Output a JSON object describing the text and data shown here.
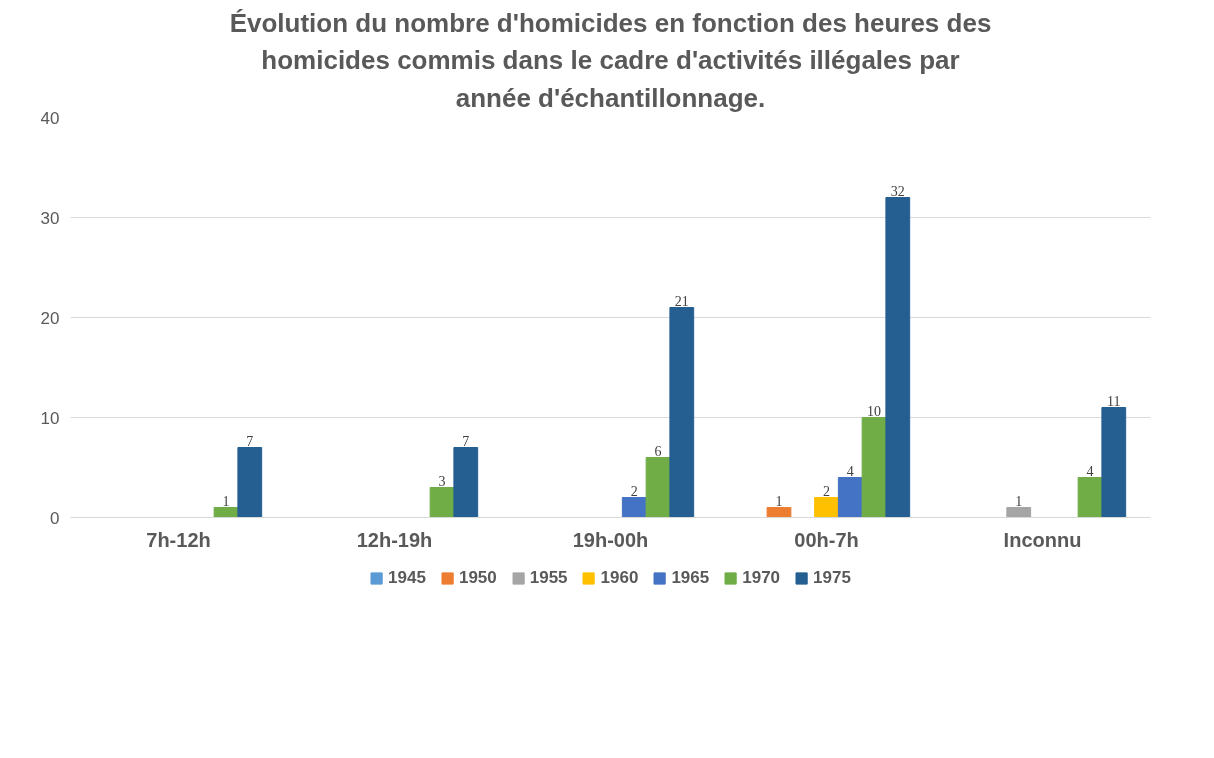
{
  "chart_data": {
    "type": "bar",
    "title": "Évolution du nombre d'homicides en fonction des heures des homicides commis dans le cadre d'activités illégales par année d'échantillonnage.",
    "categories": [
      "7h-12h",
      "12h-19h",
      "19h-00h",
      "00h-7h",
      "Inconnu"
    ],
    "series": [
      {
        "name": "1945",
        "color": "#5b9bd5",
        "values": [
          null,
          null,
          null,
          null,
          null
        ]
      },
      {
        "name": "1950",
        "color": "#ed7d31",
        "values": [
          null,
          null,
          null,
          1,
          null
        ]
      },
      {
        "name": "1955",
        "color": "#a5a5a5",
        "values": [
          null,
          null,
          null,
          null,
          1
        ]
      },
      {
        "name": "1960",
        "color": "#ffc000",
        "values": [
          null,
          null,
          null,
          2,
          null
        ]
      },
      {
        "name": "1965",
        "color": "#4472c4",
        "values": [
          null,
          null,
          2,
          4,
          null
        ]
      },
      {
        "name": "1970",
        "color": "#70ad47",
        "values": [
          1,
          3,
          6,
          10,
          4
        ]
      },
      {
        "name": "1975",
        "color": "#255e91",
        "values": [
          7,
          7,
          21,
          32,
          11
        ]
      }
    ],
    "ylim": [
      0,
      40
    ],
    "yticks": [
      0,
      10,
      20,
      30,
      40
    ],
    "grid": "y",
    "legend": "bottom",
    "data_labels": true
  }
}
